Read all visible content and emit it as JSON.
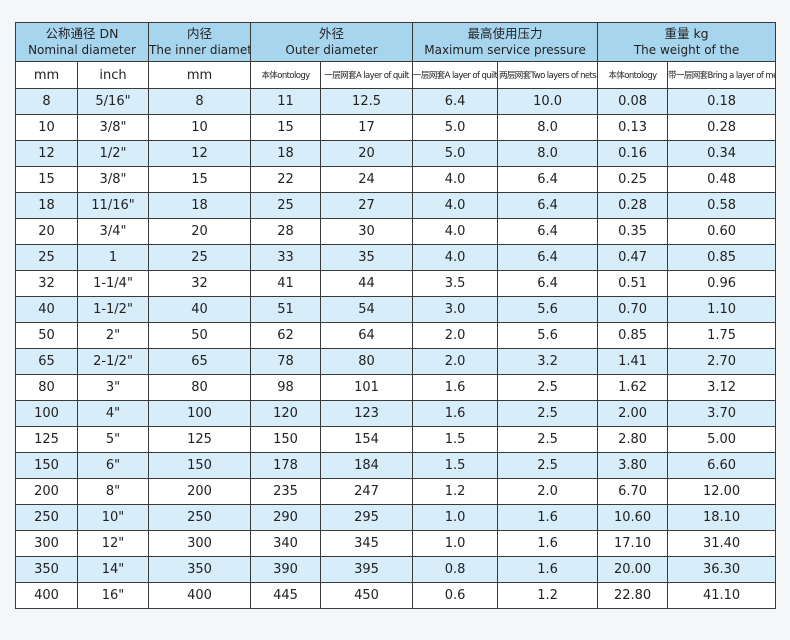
{
  "header": {
    "groups": [
      {
        "zh": "公称通径 DN",
        "en": "Nominal diameter",
        "span": 2
      },
      {
        "zh": "内径",
        "en": "The inner diameter",
        "span": 1
      },
      {
        "zh": "外径",
        "en": "Outer diameter",
        "span": 2
      },
      {
        "zh": "最高使用压力",
        "en": "Maximum service pressure",
        "span": 2
      },
      {
        "zh": "重量 kg",
        "en": "The weight of the",
        "span": 2
      }
    ],
    "subheaders": [
      "mm",
      "inch",
      "mm",
      "本体ontology",
      "一层网套A layer of quilt",
      "一层网套A layer of quilt",
      "两层网套Two layers of nets",
      "本体ontology",
      "带一层网套Bring a layer of mesh"
    ]
  },
  "table": {
    "rows": [
      [
        "8",
        "5/16\"",
        "8",
        "11",
        "12.5",
        "6.4",
        "10.0",
        "0.08",
        "0.18"
      ],
      [
        "10",
        "3/8\"",
        "10",
        "15",
        "17",
        "5.0",
        "8.0",
        "0.13",
        "0.28"
      ],
      [
        "12",
        "1/2\"",
        "12",
        "18",
        "20",
        "5.0",
        "8.0",
        "0.16",
        "0.34"
      ],
      [
        "15",
        "3/8\"",
        "15",
        "22",
        "24",
        "4.0",
        "6.4",
        "0.25",
        "0.48"
      ],
      [
        "18",
        "11/16\"",
        "18",
        "25",
        "27",
        "4.0",
        "6.4",
        "0.28",
        "0.58"
      ],
      [
        "20",
        "3/4\"",
        "20",
        "28",
        "30",
        "4.0",
        "6.4",
        "0.35",
        "0.60"
      ],
      [
        "25",
        "1",
        "25",
        "33",
        "35",
        "4.0",
        "6.4",
        "0.47",
        "0.85"
      ],
      [
        "32",
        "1-1/4\"",
        "32",
        "41",
        "44",
        "3.5",
        "6.4",
        "0.51",
        "0.96"
      ],
      [
        "40",
        "1-1/2\"",
        "40",
        "51",
        "54",
        "3.0",
        "5.6",
        "0.70",
        "1.10"
      ],
      [
        "50",
        "2\"",
        "50",
        "62",
        "64",
        "2.0",
        "5.6",
        "0.85",
        "1.75"
      ],
      [
        "65",
        "2-1/2\"",
        "65",
        "78",
        "80",
        "2.0",
        "3.2",
        "1.41",
        "2.70"
      ],
      [
        "80",
        "3\"",
        "80",
        "98",
        "101",
        "1.6",
        "2.5",
        "1.62",
        "3.12"
      ],
      [
        "100",
        "4\"",
        "100",
        "120",
        "123",
        "1.6",
        "2.5",
        "2.00",
        "3.70"
      ],
      [
        "125",
        "5\"",
        "125",
        "150",
        "154",
        "1.5",
        "2.5",
        "2.80",
        "5.00"
      ],
      [
        "150",
        "6\"",
        "150",
        "178",
        "184",
        "1.5",
        "2.5",
        "3.80",
        "6.60"
      ],
      [
        "200",
        "8\"",
        "200",
        "235",
        "247",
        "1.2",
        "2.0",
        "6.70",
        "12.00"
      ],
      [
        "250",
        "10\"",
        "250",
        "290",
        "295",
        "1.0",
        "1.6",
        "10.60",
        "18.10"
      ],
      [
        "300",
        "12\"",
        "300",
        "340",
        "345",
        "1.0",
        "1.6",
        "17.10",
        "31.40"
      ],
      [
        "350",
        "14\"",
        "350",
        "390",
        "395",
        "0.8",
        "1.6",
        "20.00",
        "36.30"
      ],
      [
        "400",
        "16\"",
        "400",
        "445",
        "450",
        "0.6",
        "1.2",
        "22.80",
        "41.10"
      ]
    ]
  }
}
